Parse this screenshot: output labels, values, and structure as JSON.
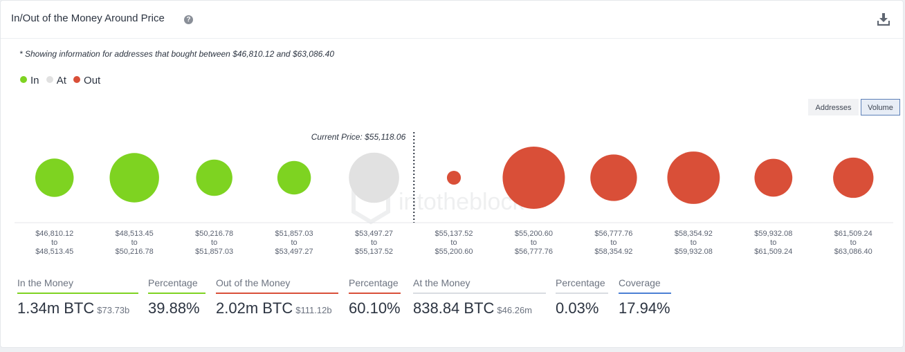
{
  "header": {
    "title": "In/Out of the Money Around Price",
    "help_symbol": "?",
    "download_icon": "download-icon"
  },
  "note": "* Showing information for addresses that bought between $46,810.12 and $63,086.40",
  "legend": [
    {
      "label": "In",
      "color": "#7ed321"
    },
    {
      "label": "At",
      "color": "#e1e1e1"
    },
    {
      "label": "Out",
      "color": "#d94f38"
    }
  ],
  "toggles": {
    "addresses": "Addresses",
    "volume": "Volume",
    "active": "Volume"
  },
  "chart_data": {
    "type": "bubble",
    "current_price_label": "Current Price: $55,118.06",
    "current_price_after_index": 4,
    "colors": {
      "in": "#7ed321",
      "at": "#e1e1e1",
      "out": "#d94f38"
    },
    "buckets": [
      {
        "from": "$46,810.12",
        "to": "$48,513.45",
        "status": "in",
        "relative_volume": 0.38
      },
      {
        "from": "$48,513.45",
        "to": "$50,216.78",
        "status": "in",
        "relative_volume": 0.63
      },
      {
        "from": "$50,216.78",
        "to": "$51,857.03",
        "status": "in",
        "relative_volume": 0.34
      },
      {
        "from": "$51,857.03",
        "to": "$53,497.27",
        "status": "in",
        "relative_volume": 0.29
      },
      {
        "from": "$53,497.27",
        "to": "$55,137.52",
        "status": "at",
        "relative_volume": 0.65
      },
      {
        "from": "$55,137.52",
        "to": "$55,200.60",
        "status": "out",
        "relative_volume": 0.05
      },
      {
        "from": "$55,200.60",
        "to": "$56,777.76",
        "status": "out",
        "relative_volume": 1.0
      },
      {
        "from": "$56,777.76",
        "to": "$58,354.92",
        "status": "out",
        "relative_volume": 0.56
      },
      {
        "from": "$58,354.92",
        "to": "$59,932.08",
        "status": "out",
        "relative_volume": 0.71
      },
      {
        "from": "$59,932.08",
        "to": "$61,509.24",
        "status": "out",
        "relative_volume": 0.37
      },
      {
        "from": "$61,509.24",
        "to": "$63,086.40",
        "status": "out",
        "relative_volume": 0.42
      }
    ],
    "range_connector": "to"
  },
  "stats": [
    {
      "label": "In the Money",
      "value": "1.34m BTC",
      "sub": "$73.73b",
      "color": "#7ed321"
    },
    {
      "label": "Percentage",
      "value": "39.88%",
      "sub": "",
      "color": "#7ed321"
    },
    {
      "label": "Out of the Money",
      "value": "2.02m BTC",
      "sub": "$111.12b",
      "color": "#d94f38"
    },
    {
      "label": "Percentage",
      "value": "60.10%",
      "sub": "",
      "color": "#d94f38"
    },
    {
      "label": "At the Money",
      "value": "838.84 BTC",
      "sub": "$46.26m",
      "color": "#d9dce1"
    },
    {
      "label": "Percentage",
      "value": "0.03%",
      "sub": "",
      "color": "#d9dce1"
    },
    {
      "label": "Coverage",
      "value": "17.94%",
      "sub": "",
      "color": "#4a7fd4"
    }
  ]
}
